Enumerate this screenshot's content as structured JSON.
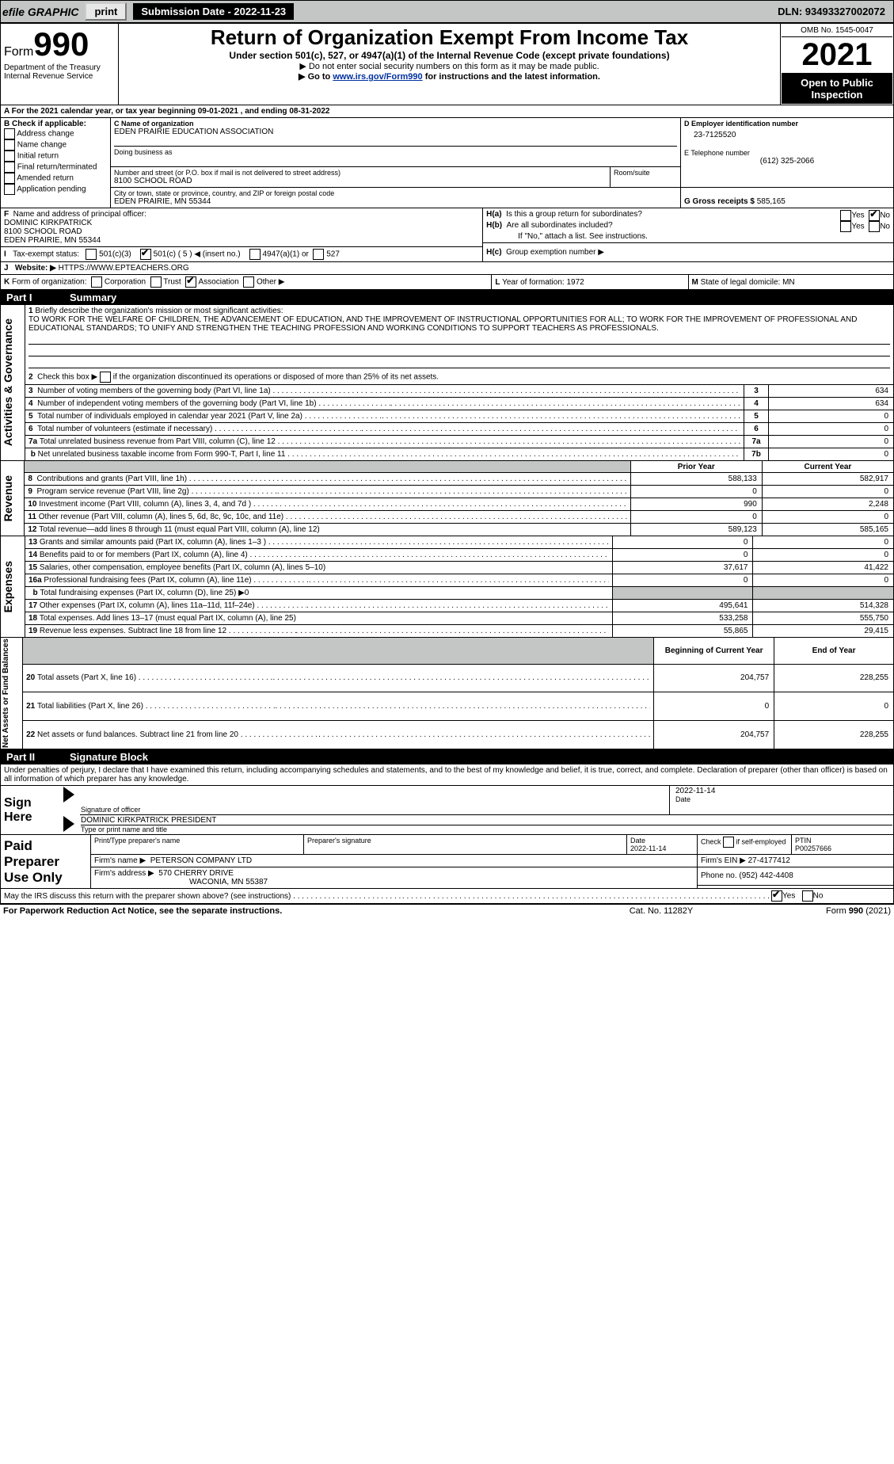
{
  "top": {
    "efile": "efile GRAPHIC",
    "print": "print",
    "submission": "Submission Date - 2022-11-23",
    "dln": "DLN: 93493327002072"
  },
  "header": {
    "form": "Form",
    "number": "990",
    "dept": "Department of the Treasury",
    "irs": "Internal Revenue Service",
    "title": "Return of Organization Exempt From Income Tax",
    "subtitle": "Under section 501(c), 527, or 4947(a)(1) of the Internal Revenue Code (except private foundations)",
    "note1": "▶ Do not enter social security numbers on this form as it may be made public.",
    "note2_pre": "▶ Go to ",
    "note2_link": "www.irs.gov/Form990",
    "note2_post": " for instructions and the latest information.",
    "omb": "OMB No. 1545-0047",
    "year": "2021",
    "open": "Open to Public Inspection"
  },
  "A": {
    "line": "A For the 2021 calendar year, or tax year beginning 09-01-2021     , and ending 08-31-2022"
  },
  "B": {
    "label": "B Check if applicable:",
    "opts": [
      "Address change",
      "Name change",
      "Initial return",
      "Final return/terminated",
      "Amended return",
      "Application pending"
    ]
  },
  "C": {
    "label": "C Name of organization",
    "name": "EDEN PRAIRIE EDUCATION ASSOCIATION",
    "dba_label": "Doing business as",
    "dba": "",
    "street_label": "Number and street (or P.O. box if mail is not delivered to street address)",
    "room_label": "Room/suite",
    "street": "8100 SCHOOL ROAD",
    "city_label": "City or town, state or province, country, and ZIP or foreign postal code",
    "city": "EDEN PRAIRIE, MN  55344"
  },
  "D": {
    "label": "D Employer identification number",
    "val": "23-7125520"
  },
  "E": {
    "label": "E Telephone number",
    "val": "(612) 325-2066"
  },
  "G": {
    "label": "G Gross receipts $",
    "val": "585,165"
  },
  "F": {
    "label": "F  Name and address of principal officer:",
    "l1": "DOMINIC KIRKPATRICK",
    "l2": "8100 SCHOOL ROAD",
    "l3": "EDEN PRAIRIE, MN  55344"
  },
  "H": {
    "a_label": "H(a)  Is this a group return for subordinates?",
    "b_label": "H(b)  Are all subordinates included?",
    "b_note": "If \"No,\" attach a list. See instructions.",
    "c_label": "H(c)  Group exemption number ▶",
    "yes": "Yes",
    "no": "No"
  },
  "I": {
    "label": "I   Tax-exempt status:",
    "o1": "501(c)(3)",
    "o2": "501(c) ( 5 ) ◀ (insert no.)",
    "o3": "4947(a)(1) or",
    "o4": "527"
  },
  "J": {
    "label": "J   Website: ▶",
    "val": "HTTPS://WWW.EPTEACHERS.ORG"
  },
  "K": {
    "label": "K Form of organization:",
    "o1": "Corporation",
    "o2": "Trust",
    "o3": "Association",
    "o4": "Other ▶"
  },
  "L": {
    "label": "L Year of formation: ",
    "val": "1972"
  },
  "M": {
    "label": "M State of legal domicile: ",
    "val": "MN"
  },
  "part1": {
    "header_part": "Part I",
    "header_title": "Summary",
    "q1_label": "1 Briefly describe the organization's mission or most significant activities:",
    "q1_text": "TO WORK FOR THE WELFARE OF CHILDREN, THE ADVANCEMENT OF EDUCATION, AND THE IMPROVEMENT OF INSTRUCTIONAL OPPORTUNITIES FOR ALL; TO WORK FOR THE IMPROVEMENT OF PROFESSIONAL AND EDUCATIONAL STANDARDS; TO UNIFY AND STRENGTHEN THE TEACHING PROFESSION AND WORKING CONDITIONS TO SUPPORT TEACHERS AS PROFESSIONALS.",
    "q2": "2  Check this box ▶       if the organization discontinued its operations or disposed of more than 25% of its net assets.",
    "vlabels": {
      "ag": "Activities & Governance",
      "rev": "Revenue",
      "exp": "Expenses",
      "na": "Net Assets or Fund Balances"
    }
  },
  "rows_ag": [
    {
      "n": "3",
      "t": "Number of voting members of the governing body (Part VI, line 1a)",
      "box": "3",
      "v": "634"
    },
    {
      "n": "4",
      "t": "Number of independent voting members of the governing body (Part VI, line 1b)",
      "box": "4",
      "v": "634"
    },
    {
      "n": "5",
      "t": "Total number of individuals employed in calendar year 2021 (Part V, line 2a)",
      "box": "5",
      "v": "0"
    },
    {
      "n": "6",
      "t": "Total number of volunteers (estimate if necessary)",
      "box": "6",
      "v": "0"
    },
    {
      "n": "7a",
      "t": "Total unrelated business revenue from Part VIII, column (C), line 12",
      "box": "7a",
      "v": "0"
    },
    {
      "n": "",
      "t": "Net unrelated business taxable income from Form 990-T, Part I, line 11",
      "box": "7b",
      "v": "0"
    }
  ],
  "pyear_cyear": {
    "py": "Prior Year",
    "cy": "Current Year"
  },
  "rows_rev": [
    {
      "n": "8",
      "t": "Contributions and grants (Part VIII, line 1h)",
      "py": "588,133",
      "cy": "582,917"
    },
    {
      "n": "9",
      "t": "Program service revenue (Part VIII, line 2g)",
      "py": "0",
      "cy": "0"
    },
    {
      "n": "10",
      "t": "Investment income (Part VIII, column (A), lines 3, 4, and 7d )",
      "py": "990",
      "cy": "2,248"
    },
    {
      "n": "11",
      "t": "Other revenue (Part VIII, column (A), lines 5, 6d, 8c, 9c, 10c, and 11e)",
      "py": "0",
      "cy": "0"
    },
    {
      "n": "12",
      "t": "Total revenue—add lines 8 through 11 (must equal Part VIII, column (A), line 12)",
      "py": "589,123",
      "cy": "585,165"
    }
  ],
  "rows_exp": [
    {
      "n": "13",
      "t": "Grants and similar amounts paid (Part IX, column (A), lines 1–3 )",
      "py": "0",
      "cy": "0"
    },
    {
      "n": "14",
      "t": "Benefits paid to or for members (Part IX, column (A), line 4)",
      "py": "0",
      "cy": "0"
    },
    {
      "n": "15",
      "t": "Salaries, other compensation, employee benefits (Part IX, column (A), lines 5–10)",
      "py": "37,617",
      "cy": "41,422"
    },
    {
      "n": "16a",
      "t": "Professional fundraising fees (Part IX, column (A), line 11e)",
      "py": "0",
      "cy": "0"
    },
    {
      "n": "b",
      "t": "Total fundraising expenses (Part IX, column (D), line 25) ▶0",
      "py": "",
      "cy": "",
      "grey": true
    },
    {
      "n": "17",
      "t": "Other expenses (Part IX, column (A), lines 11a–11d, 11f–24e)",
      "py": "495,641",
      "cy": "514,328"
    },
    {
      "n": "18",
      "t": "Total expenses. Add lines 13–17 (must equal Part IX, column (A), line 25)",
      "py": "533,258",
      "cy": "555,750"
    },
    {
      "n": "19",
      "t": "Revenue less expenses. Subtract line 18 from line 12",
      "py": "55,865",
      "cy": "29,415"
    }
  ],
  "by_ey": {
    "by": "Beginning of Current Year",
    "ey": "End of Year"
  },
  "rows_na": [
    {
      "n": "20",
      "t": "Total assets (Part X, line 16)",
      "py": "204,757",
      "cy": "228,255"
    },
    {
      "n": "21",
      "t": "Total liabilities (Part X, line 26)",
      "py": "0",
      "cy": "0"
    },
    {
      "n": "22",
      "t": "Net assets or fund balances. Subtract line 21 from line 20",
      "py": "204,757",
      "cy": "228,255"
    }
  ],
  "part2": {
    "header_part": "Part II",
    "header_title": "Signature Block",
    "decl": "Under penalties of perjury, I declare that I have examined this return, including accompanying schedules and statements, and to the best of my knowledge and belief, it is true, correct, and complete. Declaration of preparer (other than officer) is based on all information of which preparer has any knowledge."
  },
  "sign": {
    "label": "Sign Here",
    "sig_officer": "Signature of officer",
    "date": "Date",
    "date_val": "2022-11-14",
    "name_title": "DOMINIC KIRKPATRICK  PRESIDENT",
    "type_name": "Type or print name and title"
  },
  "paid": {
    "label": "Paid Preparer Use Only",
    "h1": "Print/Type preparer's name",
    "h2": "Preparer's signature",
    "h3": "Date",
    "h3v": "2022-11-14",
    "h4": "Check        if self-employed",
    "h5": "PTIN",
    "h5v": "P00257666",
    "firm_name_l": "Firm's name    ▶",
    "firm_name": "PETERSON COMPANY LTD",
    "firm_ein_l": "Firm's EIN ▶",
    "firm_ein": "27-4177412",
    "firm_addr_l": "Firm's address ▶",
    "firm_addr1": "570 CHERRY DRIVE",
    "firm_addr2": "WACONIA, MN  55387",
    "phone_l": "Phone no.",
    "phone": "(952) 442-4408"
  },
  "foot": {
    "q": "May the IRS discuss this return with the preparer shown above? (see instructions)",
    "yes": "Yes",
    "no": "No",
    "pra": "For Paperwork Reduction Act Notice, see the separate instructions.",
    "cat": "Cat. No. 11282Y",
    "form": "Form 990 (2021)"
  }
}
